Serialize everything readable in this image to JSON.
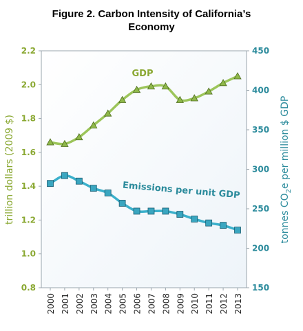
{
  "figure": {
    "title_line1": "Figure 2. Carbon Intensity of California’s",
    "title_line2": "Economy"
  },
  "chart_data": {
    "type": "line",
    "title": "Figure 2. Carbon Intensity of California’s Economy",
    "x": [
      2000,
      2001,
      2002,
      2003,
      2004,
      2005,
      2006,
      2007,
      2008,
      2009,
      2010,
      2011,
      2012,
      2013
    ],
    "xlabel": "",
    "y_left": {
      "label": "trillion dollars (2009 $)",
      "ylim": [
        0.8,
        2.2
      ],
      "ticks": [
        "0.8",
        "1.0",
        "1.2",
        "1.4",
        "1.6",
        "1.8",
        "2.0",
        "2.2"
      ],
      "color": "#8aa832"
    },
    "y_right": {
      "label_parts": [
        "tonnes CO",
        "2",
        "e per million $ GDP"
      ],
      "ylim": [
        150,
        450
      ],
      "ticks": [
        "150",
        "200",
        "250",
        "300",
        "350",
        "400",
        "450"
      ],
      "color": "#2c8b9c"
    },
    "grid": false,
    "series": [
      {
        "name": "GDP",
        "axis": "left",
        "color": "#9cc55a",
        "marker": "triangle",
        "values": [
          1.66,
          1.65,
          1.69,
          1.76,
          1.83,
          1.91,
          1.97,
          1.99,
          1.99,
          1.91,
          1.92,
          1.96,
          2.01,
          2.05
        ]
      },
      {
        "name": "Emissions per unit GDP",
        "axis": "right",
        "color": "#3bb0cb",
        "marker": "square",
        "values": [
          282,
          292,
          285,
          276,
          270,
          257,
          247,
          247,
          247,
          243,
          237,
          232,
          229,
          223
        ]
      }
    ]
  }
}
